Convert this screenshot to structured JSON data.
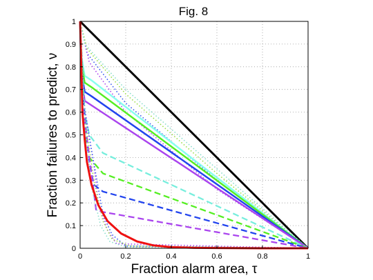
{
  "chart_data": {
    "type": "line",
    "title": "Fig. 8",
    "xlabel": "Fraction alarm area, τ",
    "ylabel": "Fraction failures to predict, ν",
    "xlim": [
      0,
      1
    ],
    "ylim": [
      0,
      1
    ],
    "grid": true,
    "x_ticks": [
      "0",
      "0.2",
      "0.4",
      "0.6",
      "0.8",
      "1"
    ],
    "y_ticks": [
      "0",
      "0.1",
      "0.2",
      "0.3",
      "0.4",
      "0.5",
      "0.6",
      "0.7",
      "0.8",
      "0.9",
      "1"
    ],
    "series": [
      {
        "color": "#000000",
        "style": "solid",
        "width": 3,
        "x": [
          0,
          1
        ],
        "y": [
          1,
          0
        ]
      },
      {
        "color": "#3355ee",
        "style": "dotted",
        "width": 1.6,
        "x": [
          0,
          0.03,
          0.2,
          0.6,
          1
        ],
        "y": [
          1,
          0.86,
          0.64,
          0.3,
          0
        ]
      },
      {
        "color": "#aa44ee",
        "style": "dotted",
        "width": 1.6,
        "x": [
          0,
          0.04,
          0.2,
          0.6,
          1
        ],
        "y": [
          1,
          0.82,
          0.6,
          0.26,
          0
        ]
      },
      {
        "color": "#99dd44",
        "style": "dotted",
        "width": 1.6,
        "x": [
          0,
          0.03,
          0.2,
          0.6,
          1
        ],
        "y": [
          1,
          0.88,
          0.68,
          0.33,
          0
        ]
      },
      {
        "color": "#88ddcc",
        "style": "dotted",
        "width": 1.6,
        "x": [
          0,
          0.02,
          0.2,
          0.6,
          1
        ],
        "y": [
          1,
          0.9,
          0.7,
          0.35,
          0
        ]
      },
      {
        "color": "#88ffee",
        "style": "solid",
        "width": 2.5,
        "x": [
          0,
          0.005,
          0.02,
          0.05,
          1
        ],
        "y": [
          1,
          0.85,
          0.76,
          0.74,
          0
        ]
      },
      {
        "color": "#55ee22",
        "style": "solid",
        "width": 2.5,
        "x": [
          0,
          0.005,
          0.02,
          0.05,
          1
        ],
        "y": [
          1,
          0.82,
          0.73,
          0.71,
          0
        ]
      },
      {
        "color": "#2244ee",
        "style": "solid",
        "width": 2.5,
        "x": [
          0,
          0.005,
          0.02,
          0.05,
          1
        ],
        "y": [
          1,
          0.78,
          0.69,
          0.67,
          0
        ]
      },
      {
        "color": "#aa44ee",
        "style": "solid",
        "width": 2.5,
        "x": [
          0,
          0.005,
          0.02,
          0.05,
          1
        ],
        "y": [
          1,
          0.76,
          0.65,
          0.63,
          0
        ]
      },
      {
        "color": "#77eedd",
        "style": "dashed",
        "width": 2.3,
        "x": [
          0,
          0.01,
          0.02,
          0.04,
          0.1,
          1
        ],
        "y": [
          1,
          0.78,
          0.6,
          0.5,
          0.42,
          0
        ]
      },
      {
        "color": "#55ee22",
        "style": "dashed",
        "width": 2.3,
        "x": [
          0,
          0.01,
          0.02,
          0.04,
          0.1,
          1
        ],
        "y": [
          1,
          0.72,
          0.52,
          0.4,
          0.33,
          0
        ]
      },
      {
        "color": "#2244ee",
        "style": "dashed",
        "width": 2.3,
        "x": [
          0,
          0.01,
          0.04,
          0.06,
          0.1,
          1
        ],
        "y": [
          1,
          0.68,
          0.38,
          0.28,
          0.25,
          0
        ]
      },
      {
        "color": "#aa44ee",
        "style": "dashed",
        "width": 2.3,
        "x": [
          0,
          0.01,
          0.05,
          0.07,
          0.1,
          1
        ],
        "y": [
          1,
          0.64,
          0.33,
          0.17,
          0.16,
          0
        ]
      },
      {
        "color": "#aa44ee",
        "style": "dotted",
        "width": 1.6,
        "x": [
          0,
          0.02,
          0.06,
          0.08,
          0.12,
          0.16,
          1
        ],
        "y": [
          1,
          0.62,
          0.37,
          0.2,
          0.08,
          0.02,
          0
        ]
      },
      {
        "color": "#3355ee",
        "style": "dotted",
        "width": 1.6,
        "x": [
          0,
          0.02,
          0.07,
          0.1,
          0.14,
          0.2,
          1
        ],
        "y": [
          1,
          0.6,
          0.32,
          0.15,
          0.06,
          0.01,
          0
        ]
      },
      {
        "color": "#99dd44",
        "style": "dotted",
        "width": 1.6,
        "x": [
          0,
          0.02,
          0.06,
          0.1,
          0.14,
          0.22,
          1
        ],
        "y": [
          1,
          0.58,
          0.3,
          0.12,
          0.04,
          0.01,
          0
        ]
      },
      {
        "color": "#88ddcc",
        "style": "dotted",
        "width": 1.6,
        "x": [
          0,
          0.02,
          0.05,
          0.09,
          0.13,
          0.2,
          1
        ],
        "y": [
          1,
          0.56,
          0.27,
          0.1,
          0.03,
          0.005,
          0
        ]
      },
      {
        "color": "#ee1111",
        "style": "solid",
        "width": 3,
        "x": [
          0,
          0.01,
          0.02,
          0.03,
          0.05,
          0.08,
          0.12,
          0.18,
          0.25,
          0.32,
          0.4,
          0.5,
          0.6,
          0.8,
          1
        ],
        "y": [
          1,
          0.6,
          0.48,
          0.38,
          0.28,
          0.19,
          0.12,
          0.065,
          0.03,
          0.013,
          0.005,
          0.002,
          0.001,
          0,
          0
        ]
      }
    ]
  }
}
